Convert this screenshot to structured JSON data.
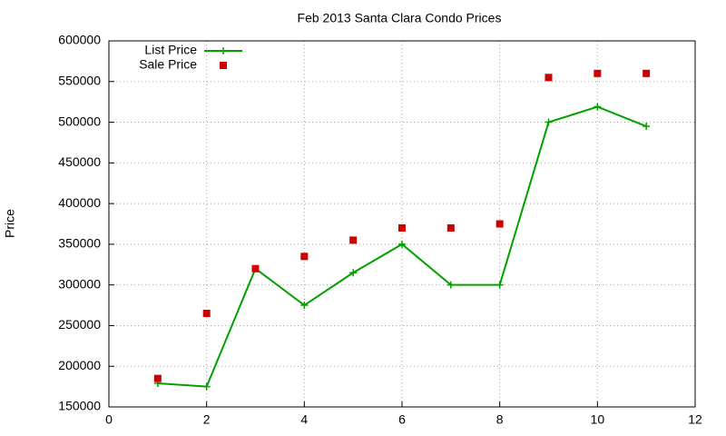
{
  "chart_data": {
    "type": "line",
    "title": "Feb 2013 Santa Clara Condo Prices",
    "y_label": "Price",
    "x": [
      1,
      2,
      3,
      4,
      5,
      6,
      7,
      8,
      9,
      10,
      11
    ],
    "series": [
      {
        "name": "List Price",
        "color": "#00a000",
        "style": "linespoints",
        "values": [
          179000,
          175000,
          320000,
          275000,
          315000,
          350000,
          300000,
          300000,
          500000,
          519000,
          495000
        ]
      },
      {
        "name": "Sale Price",
        "color": "#cc0000",
        "style": "points",
        "values": [
          185000,
          265000,
          320000,
          335000,
          355000,
          370000,
          370000,
          375000,
          555000,
          560000,
          560000
        ]
      }
    ],
    "xlim": [
      0,
      12
    ],
    "xticks": [
      0,
      2,
      4,
      6,
      8,
      10,
      12
    ],
    "ylim": [
      150000,
      600000
    ],
    "yticks": [
      150000,
      200000,
      250000,
      300000,
      350000,
      400000,
      450000,
      500000,
      550000,
      600000
    ],
    "grid": true,
    "legend": "top-left"
  }
}
